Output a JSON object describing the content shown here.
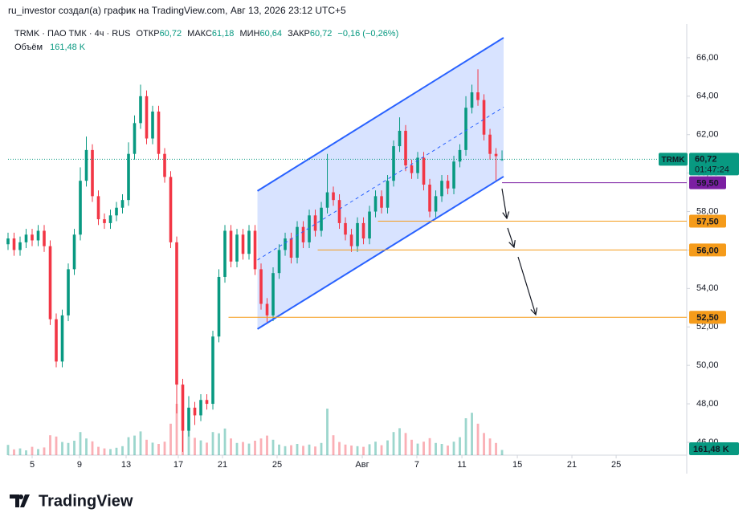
{
  "header": {
    "attribution": "ru_investor создал(а) график на TradingView.com, Авг 13, 2026 23:12 UTC+5",
    "symbol": "TRMK · ПАО ТМК · 4ч · RUS",
    "open_label": "ОТКР",
    "open": "60,72",
    "high_label": "МАКС",
    "high": "61,18",
    "low_label": "МИН",
    "low": "60,64",
    "close_label": "ЗАКР",
    "close": "60,72",
    "change": "−0,16 (−0,26%)",
    "volume_label": "Объём",
    "volume": "161,48 K"
  },
  "chart_data": {
    "type": "candlestick",
    "x": [
      0,
      0.5,
      1,
      1.5,
      2,
      2.5,
      3,
      3.5,
      4,
      4.5,
      5,
      5.5,
      6,
      6.5,
      7,
      7.5,
      8,
      8.5,
      9,
      9.5,
      10,
      10.5,
      11,
      11.5,
      12,
      12.5,
      13,
      13.5,
      14,
      14.5,
      15,
      15.5,
      16,
      16.5,
      17,
      17.5,
      18,
      18.5,
      19,
      19.5,
      20,
      20.5,
      21,
      21.5,
      22,
      22.5,
      23,
      23.5,
      24,
      24.5,
      25,
      25.5,
      26,
      26.5,
      27,
      27.5,
      28,
      28.5,
      29,
      29.5,
      30,
      30.5,
      31,
      31.5,
      32,
      32.5,
      33,
      33.5,
      34,
      34.5,
      35,
      35.5,
      36,
      36.5,
      37,
      37.5,
      38,
      38.5,
      39,
      39.5,
      40,
      40.5,
      41
    ],
    "open": [
      56.3,
      56.6,
      56.0,
      56.4,
      56.8,
      56.5,
      57.0,
      56.2,
      52.4,
      50.2,
      52.6,
      55.0,
      56.8,
      59.6,
      61.2,
      58.8,
      57.6,
      57.4,
      57.8,
      58.2,
      58.6,
      61.0,
      62.6,
      64.0,
      61.8,
      63.2,
      61.0,
      59.8,
      56.4,
      49.0,
      46.6,
      47.8,
      47.4,
      48.2,
      48.0,
      51.5,
      54.6,
      57.0,
      55.4,
      56.8,
      55.8,
      57.0,
      55.0,
      53.2,
      52.6,
      54.8,
      56.0,
      56.6,
      55.6,
      57.2,
      56.4,
      57.8,
      57.0,
      58.2,
      59.0,
      58.6,
      57.4,
      56.8,
      56.2,
      57.4,
      56.6,
      58.0,
      58.8,
      58.2,
      59.6,
      61.4,
      62.2,
      60.4,
      60.0,
      60.8,
      59.4,
      58.0,
      58.8,
      59.6,
      59.2,
      60.6,
      61.2,
      63.4,
      64.2,
      63.8,
      62.0,
      61.0,
      60.72
    ],
    "high": [
      56.9,
      56.9,
      56.7,
      57.1,
      57.1,
      57.3,
      57.3,
      56.5,
      52.7,
      52.9,
      55.3,
      57.1,
      60.3,
      61.9,
      61.5,
      59.1,
      57.9,
      58.1,
      58.5,
      58.9,
      61.6,
      63.0,
      64.6,
      64.3,
      63.5,
      63.5,
      61.3,
      60.1,
      56.7,
      49.3,
      48.4,
      48.1,
      48.5,
      48.5,
      51.8,
      55.0,
      57.3,
      57.3,
      57.1,
      57.1,
      57.3,
      57.3,
      55.3,
      53.5,
      55.1,
      56.3,
      56.9,
      56.9,
      57.5,
      57.5,
      58.1,
      58.1,
      58.5,
      61.0,
      59.3,
      58.9,
      57.7,
      57.1,
      57.7,
      57.7,
      58.3,
      59.1,
      59.1,
      59.9,
      61.7,
      62.9,
      62.5,
      60.7,
      61.1,
      61.1,
      59.7,
      59.1,
      59.9,
      59.9,
      60.9,
      61.5,
      64.0,
      64.6,
      65.4,
      64.1,
      62.3,
      61.3,
      61.18
    ],
    "low": [
      56.0,
      55.7,
      55.7,
      56.1,
      56.2,
      56.2,
      55.9,
      52.1,
      49.9,
      49.9,
      52.3,
      54.7,
      56.5,
      59.3,
      58.5,
      57.3,
      57.1,
      57.1,
      57.5,
      57.9,
      58.3,
      60.7,
      62.3,
      61.5,
      61.5,
      60.7,
      59.5,
      56.1,
      47.5,
      45.5,
      46.3,
      46.9,
      47.1,
      47.7,
      47.7,
      51.2,
      54.3,
      55.1,
      55.1,
      55.5,
      55.5,
      54.7,
      52.9,
      52.2,
      52.3,
      54.5,
      55.7,
      55.3,
      55.3,
      56.1,
      56.1,
      56.7,
      56.7,
      57.9,
      58.3,
      57.1,
      56.5,
      55.9,
      55.9,
      56.3,
      56.3,
      57.7,
      57.9,
      57.9,
      59.3,
      61.1,
      60.1,
      59.7,
      59.7,
      59.1,
      57.7,
      57.7,
      58.5,
      58.9,
      58.9,
      60.3,
      60.9,
      63.1,
      63.5,
      61.7,
      60.7,
      59.6,
      60.64
    ],
    "close": [
      56.6,
      56.0,
      56.4,
      56.8,
      56.5,
      57.0,
      56.2,
      52.4,
      50.2,
      52.6,
      55.0,
      56.8,
      59.6,
      61.2,
      58.8,
      57.6,
      57.4,
      57.8,
      58.2,
      58.6,
      61.0,
      62.6,
      64.0,
      61.8,
      63.2,
      61.0,
      59.8,
      56.4,
      49.0,
      46.6,
      47.8,
      47.4,
      48.2,
      48.0,
      51.5,
      54.6,
      57.0,
      55.4,
      56.8,
      55.8,
      57.0,
      55.0,
      53.2,
      52.6,
      54.8,
      56.0,
      56.6,
      55.6,
      57.2,
      56.4,
      57.8,
      57.0,
      58.2,
      59.0,
      58.6,
      57.4,
      56.8,
      56.2,
      57.4,
      56.6,
      58.0,
      58.8,
      58.2,
      59.6,
      61.4,
      62.2,
      60.4,
      60.0,
      60.8,
      59.4,
      58.0,
      58.8,
      59.6,
      59.2,
      60.6,
      61.2,
      63.4,
      64.2,
      63.8,
      62.0,
      61.0,
      60.88,
      60.72
    ],
    "volume": [
      320,
      180,
      210,
      150,
      260,
      190,
      240,
      620,
      580,
      410,
      380,
      450,
      720,
      520,
      430,
      260,
      210,
      190,
      230,
      280,
      560,
      610,
      740,
      480,
      390,
      350,
      420,
      980,
      1600,
      1250,
      880,
      540,
      460,
      390,
      720,
      680,
      830,
      520,
      380,
      410,
      360,
      450,
      520,
      610,
      480,
      330,
      280,
      310,
      350,
      290,
      330,
      270,
      380,
      1450,
      620,
      410,
      330,
      300,
      280,
      260,
      340,
      420,
      310,
      460,
      720,
      840,
      690,
      480,
      360,
      420,
      530,
      380,
      350,
      300,
      420,
      560,
      1150,
      1320,
      980,
      690,
      520,
      380,
      161.48
    ],
    "up_color": "#089981",
    "down_color": "#f23645",
    "xlim": [
      0,
      56.33
    ],
    "xticks": [
      {
        "value": 2.0,
        "label": "5"
      },
      {
        "value": 5.93,
        "label": "9"
      },
      {
        "value": 9.8,
        "label": "13"
      },
      {
        "value": 14.13,
        "label": "17"
      },
      {
        "value": 17.8,
        "label": "21"
      },
      {
        "value": 22.33,
        "label": "25"
      },
      {
        "value": 29.4,
        "label": "Авг"
      },
      {
        "value": 33.93,
        "label": "7"
      },
      {
        "value": 37.67,
        "label": "11"
      },
      {
        "value": 42.27,
        "label": "15"
      },
      {
        "value": 46.8,
        "label": "21"
      },
      {
        "value": 50.47,
        "label": "25"
      }
    ],
    "ylim": [
      45.33,
      67.75
    ],
    "yticks": [
      {
        "value": 46,
        "label": "46,00"
      },
      {
        "value": 48,
        "label": "48,00"
      },
      {
        "value": 50,
        "label": "50,00"
      },
      {
        "value": 52,
        "label": "52,00"
      },
      {
        "value": 54,
        "label": "54,00"
      },
      {
        "value": 56,
        "label": "56,00"
      },
      {
        "value": 58,
        "label": "58,00"
      },
      {
        "value": 60,
        "label": "60,00"
      },
      {
        "value": 62,
        "label": "62,00"
      },
      {
        "value": 64,
        "label": "64,00"
      },
      {
        "value": 66,
        "label": "66,00"
      }
    ],
    "volume_ylim": [
      0,
      2500
    ],
    "grid": false,
    "last_price": {
      "value": 60.72,
      "label": "60,72"
    },
    "last_price_symbol": "TRMK",
    "countdown": "01:47:24",
    "last_volume": {
      "value": 161.48,
      "label": "161,48 K"
    },
    "channel": {
      "x": [
        20.7,
        41.13
      ],
      "upper": [
        59.07,
        67.04
      ],
      "lower": [
        51.89,
        59.82
      ],
      "color": "#2962ff"
    },
    "levels": [
      {
        "value": 59.5,
        "label": "59,50",
        "from_x": 41,
        "color": "#7b1fa2",
        "text_color": "#ffffff"
      },
      {
        "value": 57.5,
        "label": "57,50",
        "from_x": 30.7,
        "color": "#f59b1a",
        "text_color": "#000000"
      },
      {
        "value": 56,
        "label": "56,00",
        "from_x": 25.7,
        "color": "#f59b1a",
        "text_color": "#000000"
      },
      {
        "value": 52.5,
        "label": "52,50",
        "from_x": 18.3,
        "color": "#f59b1a",
        "text_color": "#000000"
      }
    ]
  },
  "footer": {
    "logo": "TradingView"
  }
}
